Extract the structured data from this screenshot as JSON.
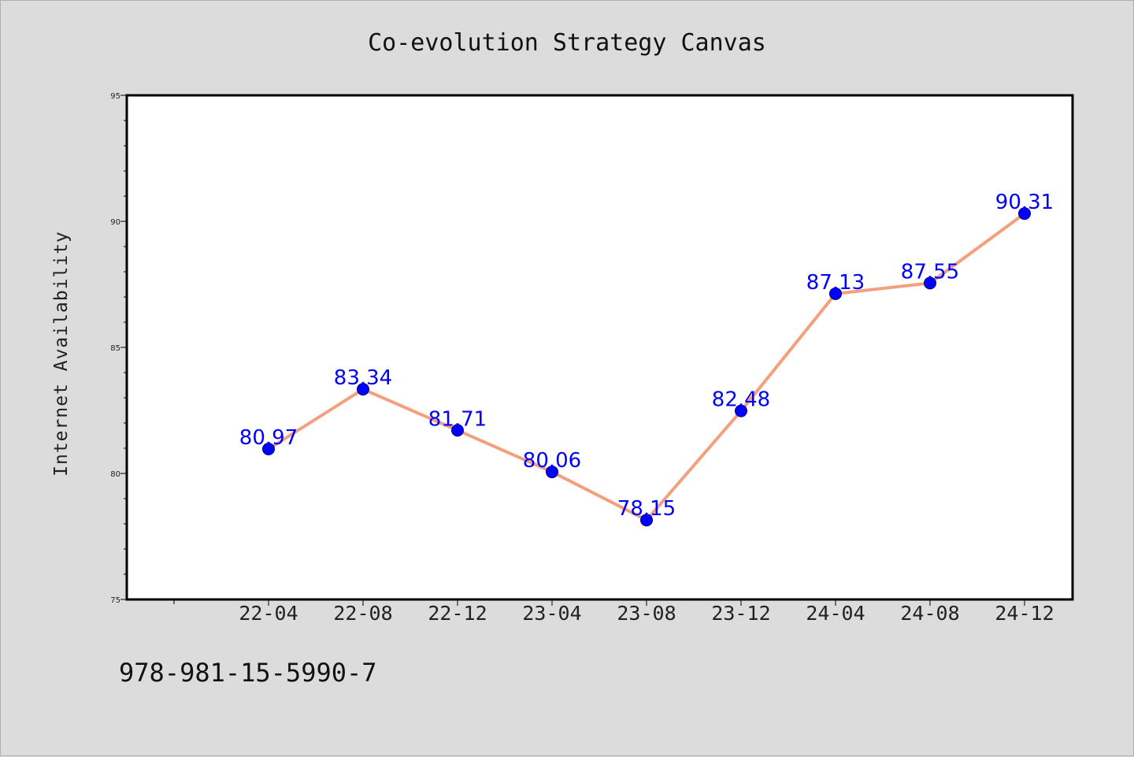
{
  "chart_data": {
    "type": "line",
    "title": "Co-evolution Strategy Canvas",
    "xlabel": "",
    "ylabel": "Internet Availability",
    "categories": [
      "22-04",
      "22-08",
      "22-12",
      "23-04",
      "23-08",
      "23-12",
      "24-04",
      "24-08",
      "24-12"
    ],
    "values": [
      80.97,
      83.34,
      81.71,
      80.06,
      78.15,
      82.48,
      87.13,
      87.55,
      90.31
    ],
    "data_labels": [
      "80.97",
      "83.34",
      "81.71",
      "80.06",
      "78.15",
      "82.48",
      "87.13",
      "87.55",
      "90.31"
    ],
    "ylim": [
      75,
      95
    ],
    "yticks": [
      "75",
      "80",
      "85",
      "90",
      "95"
    ],
    "grid": false,
    "legend": "none",
    "colors": {
      "line": "#f4a07e",
      "marker": "#0000ff",
      "marker_edge": "#000080",
      "data_label": "#0000ff",
      "plot_background": "#ffffff",
      "figure_background": "#dcdcdc"
    }
  },
  "footer": {
    "isbn": "978-981-15-5990-7"
  }
}
